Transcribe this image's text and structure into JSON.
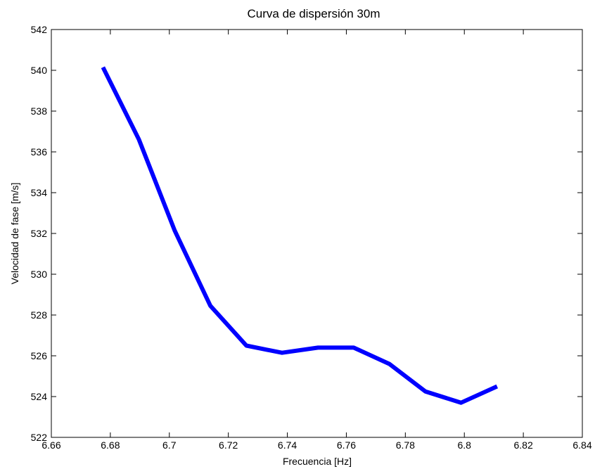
{
  "chart_data": {
    "type": "line",
    "title": "Curva de dispersión 30m",
    "xlabel": "Frecuencia [Hz]",
    "ylabel": "Velocidad de fase [m/s]",
    "xlim": [
      6.66,
      6.84
    ],
    "ylim": [
      522,
      542
    ],
    "xticks": [
      6.66,
      6.68,
      6.7,
      6.72,
      6.74,
      6.76,
      6.78,
      6.8,
      6.82,
      6.84
    ],
    "xtick_labels": [
      "6.66",
      "6.68",
      "6.7",
      "6.72",
      "6.74",
      "6.76",
      "6.78",
      "6.8",
      "6.82",
      "6.84"
    ],
    "yticks": [
      522,
      524,
      526,
      528,
      530,
      532,
      534,
      536,
      538,
      540,
      542
    ],
    "ytick_labels": [
      "522",
      "524",
      "526",
      "528",
      "530",
      "532",
      "534",
      "536",
      "538",
      "540",
      "542"
    ],
    "grid": false,
    "series": [
      {
        "color": "#0000ff",
        "x": [
          6.6775,
          6.6897,
          6.7018,
          6.7139,
          6.7261,
          6.7382,
          6.7504,
          6.7625,
          6.7746,
          6.7868,
          6.7989,
          6.8111
        ],
        "y": [
          540.15,
          536.6,
          532.15,
          528.45,
          526.5,
          526.15,
          526.4,
          526.4,
          525.6,
          524.25,
          523.7,
          524.5
        ]
      }
    ]
  }
}
